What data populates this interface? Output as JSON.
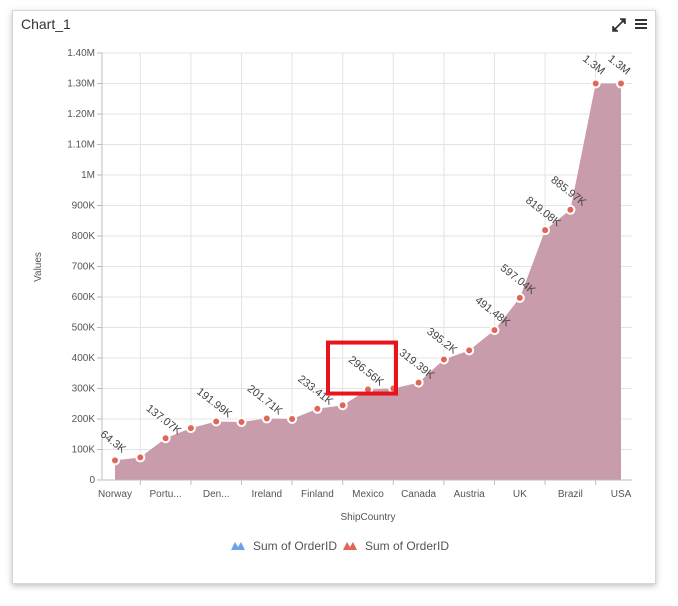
{
  "widget": {
    "title": "Chart_1",
    "expand_icon": "expand-arrows-icon",
    "menu_icon": "hamburger-menu-icon"
  },
  "chart_data": {
    "type": "area",
    "xlabel": "ShipCountry",
    "ylabel": "Values",
    "ylim": [
      0,
      1400000
    ],
    "y_ticks": [
      {
        "value": 0,
        "label": "0"
      },
      {
        "value": 100000,
        "label": "100K"
      },
      {
        "value": 200000,
        "label": "200K"
      },
      {
        "value": 300000,
        "label": "300K"
      },
      {
        "value": 400000,
        "label": "400K"
      },
      {
        "value": 500000,
        "label": "500K"
      },
      {
        "value": 600000,
        "label": "600K"
      },
      {
        "value": 700000,
        "label": "700K"
      },
      {
        "value": 800000,
        "label": "800K"
      },
      {
        "value": 900000,
        "label": "900K"
      },
      {
        "value": 1000000,
        "label": "1M"
      },
      {
        "value": 1100000,
        "label": "1.10M"
      },
      {
        "value": 1200000,
        "label": "1.20M"
      },
      {
        "value": 1300000,
        "label": "1.30M"
      },
      {
        "value": 1400000,
        "label": "1.40M"
      }
    ],
    "x_tick_labels": [
      {
        "index": 0,
        "label": "Norway"
      },
      {
        "index": 2,
        "label": "Portu..."
      },
      {
        "index": 4,
        "label": "Den..."
      },
      {
        "index": 6,
        "label": "Ireland"
      },
      {
        "index": 8,
        "label": "Finland"
      },
      {
        "index": 10,
        "label": "Mexico"
      },
      {
        "index": 12,
        "label": "Canada"
      },
      {
        "index": 14,
        "label": "Austria"
      },
      {
        "index": 16,
        "label": "UK"
      },
      {
        "index": 18,
        "label": "Brazil"
      },
      {
        "index": 20,
        "label": "USA"
      }
    ],
    "grid": true,
    "legend_position": "bottom",
    "series": [
      {
        "name": "Sum of OrderID",
        "color": "#6aa3e8",
        "values": []
      },
      {
        "name": "Sum of OrderID",
        "color": "#e06658",
        "area_color": "#c597a5",
        "values": [
          64300,
          74000,
          137070,
          170000,
          191990,
          190000,
          201710,
          200000,
          233410,
          245000,
          296560,
          300000,
          319390,
          395200,
          425000,
          491480,
          597040,
          819080,
          885970,
          1300000,
          1300000
        ]
      }
    ],
    "data_labels": [
      {
        "index": 0,
        "text": "64.3K"
      },
      {
        "index": 2,
        "text": "137.07K"
      },
      {
        "index": 4,
        "text": "191.99K"
      },
      {
        "index": 6,
        "text": "201.71K"
      },
      {
        "index": 8,
        "text": "233.41K"
      },
      {
        "index": 10,
        "text": "296.56K"
      },
      {
        "index": 12,
        "text": "319.39K"
      },
      {
        "index": 13,
        "text": "395.2K"
      },
      {
        "index": 15,
        "text": "491.48K"
      },
      {
        "index": 16,
        "text": "597.04K"
      },
      {
        "index": 17,
        "text": "819.08K"
      },
      {
        "index": 18,
        "text": "885.97K"
      },
      {
        "index": 19,
        "text": "1.3M"
      },
      {
        "index": 20,
        "text": "1.3M"
      }
    ],
    "highlight": {
      "index": 10,
      "color": "#e8141b"
    }
  }
}
